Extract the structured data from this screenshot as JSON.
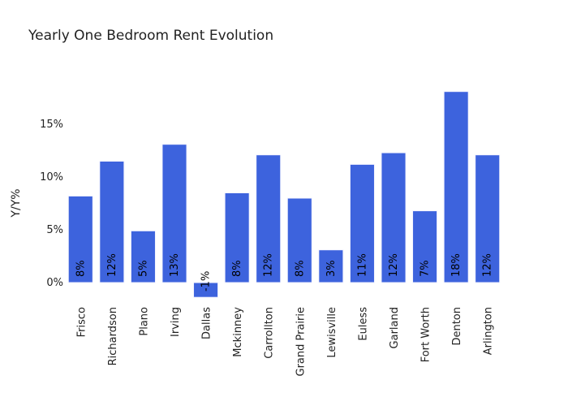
{
  "chart_data": {
    "type": "bar",
    "title": "Yearly One Bedroom Rent Evolution",
    "xlabel": "",
    "ylabel": "Y/Y%",
    "categories": [
      "Frisco",
      "Richardson",
      "Plano",
      "Irving",
      "Dallas",
      "Mckinney",
      "Carrollton",
      "Grand Prairie",
      "Lewisville",
      "Euless",
      "Garland",
      "Fort Worth",
      "Denton",
      "Arlington"
    ],
    "values": [
      8.2,
      11.5,
      4.9,
      13.1,
      -1.4,
      8.5,
      12.1,
      8.0,
      3.1,
      11.2,
      12.3,
      6.8,
      18.1,
      12.1
    ],
    "data_labels": [
      "8%",
      "12%",
      "5%",
      "13%",
      "-1%",
      "8%",
      "12%",
      "8%",
      "3%",
      "11%",
      "12%",
      "7%",
      "18%",
      "12%"
    ],
    "yticks": [
      0,
      5,
      10,
      15
    ],
    "ytick_labels": [
      "0%",
      "5%",
      "10%",
      "15%"
    ],
    "ylim": [
      -2,
      20
    ],
    "grid": false,
    "bar_color": "#3d63dd",
    "bar_edge_color": "#f5f5ff",
    "label_color": "#000000"
  }
}
